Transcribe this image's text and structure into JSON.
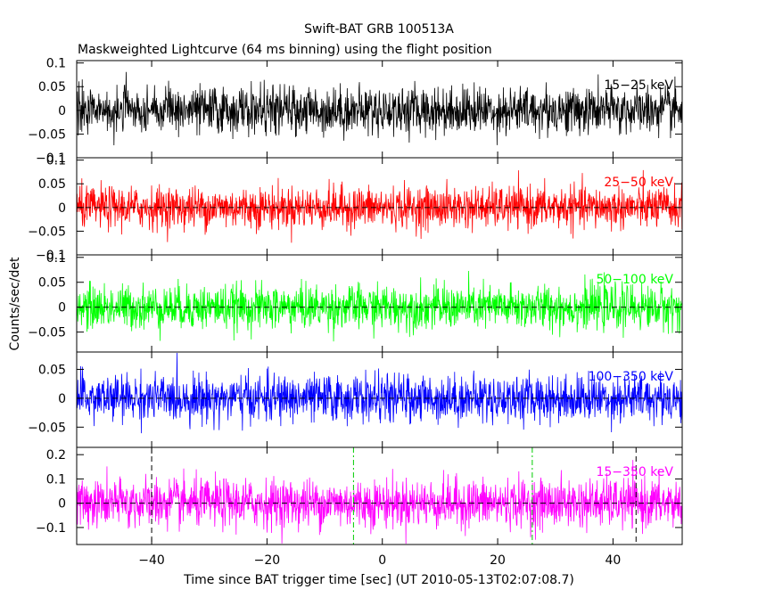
{
  "chart_data": {
    "type": "line",
    "title": "Swift-BAT GRB 100513A",
    "subtitle": "Maskweighted Lightcurve (64 ms binning) using the flight position",
    "xlabel": "Time since BAT trigger time [sec] (UT 2010-05-13T02:07:08.7)",
    "ylabel": "Counts/sec/det",
    "xlim": [
      -53,
      52
    ],
    "xticks": [
      -40,
      -20,
      0,
      20,
      40
    ],
    "xtick_labels": [
      "−40",
      "−20",
      "0",
      "20",
      "40"
    ],
    "bin_size_s": 0.064,
    "markers": [
      {
        "x": -40,
        "style": "dashed",
        "color": "#000000",
        "panels": [
          4
        ]
      },
      {
        "x": -5,
        "style": "dash-dot",
        "color": "#00cc00",
        "panels": [
          4
        ]
      },
      {
        "x": 26,
        "style": "dash-dot",
        "color": "#00cc00",
        "panels": [
          4
        ]
      },
      {
        "x": 44,
        "style": "dashed",
        "color": "#000000",
        "panels": [
          4
        ]
      }
    ],
    "panels": [
      {
        "name": "15-25 keV",
        "label": "15−25 keV",
        "color": "#000000",
        "ylim": [
          -0.1,
          0.105
        ],
        "yticks": [
          0.1,
          0.05,
          0,
          -0.05,
          -0.1
        ],
        "ytick_labels": [
          "0.1",
          "0.05",
          "0",
          "−0.05",
          "−0.1"
        ],
        "noise_sigma": 0.025,
        "zero_line": false
      },
      {
        "name": "25-50 keV",
        "label": "25−50 keV",
        "color": "#ff0000",
        "ylim": [
          -0.1,
          0.105
        ],
        "yticks": [
          0.1,
          0.05,
          0,
          -0.05,
          -0.1
        ],
        "ytick_labels": [
          "0.1",
          "0.05",
          "0",
          "−0.05",
          "−0.1"
        ],
        "noise_sigma": 0.022,
        "zero_line": true
      },
      {
        "name": "50-100 keV",
        "label": "50−100 keV",
        "color": "#00ff00",
        "ylim": [
          -0.09,
          0.105
        ],
        "yticks": [
          0.1,
          0.05,
          0,
          -0.05
        ],
        "ytick_labels": [
          "0.1",
          "0.05",
          "0",
          "−0.05"
        ],
        "noise_sigma": 0.022,
        "zero_line": true
      },
      {
        "name": "100-350 keV",
        "label": "100−350 keV",
        "color": "#0000ff",
        "ylim": [
          -0.085,
          0.08
        ],
        "yticks": [
          0.05,
          0,
          -0.05
        ],
        "ytick_labels": [
          "0.05",
          "0",
          "−0.05"
        ],
        "noise_sigma": 0.02,
        "zero_line": true
      },
      {
        "name": "15-350 keV",
        "label": "15−350 keV",
        "color": "#ff00ff",
        "ylim": [
          -0.17,
          0.23
        ],
        "yticks": [
          0.2,
          0.1,
          0,
          -0.1
        ],
        "ytick_labels": [
          "0.2",
          "0.1",
          "0",
          "−0.1"
        ],
        "noise_sigma": 0.05,
        "zero_line": true
      }
    ]
  }
}
